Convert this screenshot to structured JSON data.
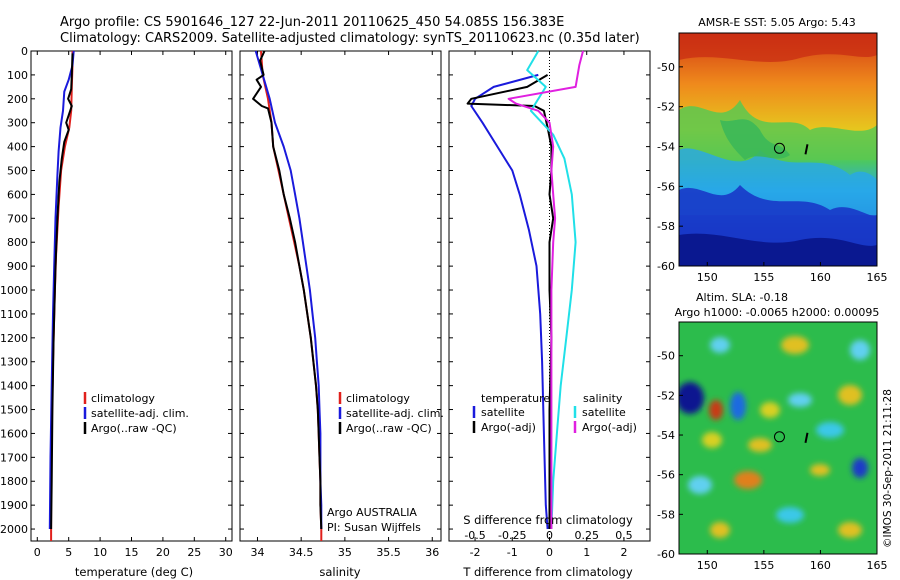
{
  "header": {
    "title_line1": "Argo profile: CS 5901646_127 22-Jun-2011 20110625_450 54.085S 156.383E",
    "title_line2": "Climatology: CARS2009. Satellite-adjusted climatology: synTS_20110623.nc (0.35d later)"
  },
  "colors": {
    "climatology": "#e0201c",
    "satellite": "#1a1adc",
    "argo": "#000000",
    "satellite_salinity": "#20e0e8",
    "argo_salinity_adj": "#e020e0"
  },
  "chart_data": [
    {
      "id": "temperature",
      "type": "line",
      "xlabel": "temperature (deg C)",
      "xlim": [
        -1,
        31
      ],
      "xticks": [
        0,
        5,
        10,
        15,
        20,
        25,
        30
      ],
      "ylim": [
        2050,
        0
      ],
      "yticks": [
        0,
        100,
        200,
        300,
        400,
        500,
        600,
        700,
        800,
        900,
        1000,
        1100,
        1200,
        1300,
        1400,
        1500,
        1600,
        1700,
        1800,
        1900,
        2000
      ],
      "legend": [
        "climatology",
        "satellite-adj. clim.",
        "Argo(..raw -QC)"
      ],
      "series": [
        {
          "name": "climatology",
          "color": "#e0201c",
          "points": [
            [
              5.6,
              0
            ],
            [
              5.6,
              60
            ],
            [
              5.5,
              150
            ],
            [
              5.4,
              250
            ],
            [
              5.1,
              320
            ],
            [
              4.4,
              400
            ],
            [
              3.8,
              500
            ],
            [
              3.4,
              650
            ],
            [
              3.0,
              850
            ],
            [
              2.8,
              1000
            ],
            [
              2.5,
              1300
            ],
            [
              2.3,
              1600
            ],
            [
              2.2,
              1800
            ],
            [
              2.2,
              2000
            ],
            [
              2.2,
              2050
            ]
          ]
        },
        {
          "name": "satellite-adj. clim.",
          "color": "#1a1adc",
          "points": [
            [
              5.8,
              0
            ],
            [
              5.6,
              60
            ],
            [
              5.0,
              120
            ],
            [
              4.3,
              170
            ],
            [
              4.1,
              250
            ],
            [
              3.7,
              320
            ],
            [
              3.4,
              420
            ],
            [
              3.2,
              520
            ],
            [
              2.9,
              700
            ],
            [
              2.7,
              900
            ],
            [
              2.5,
              1100
            ],
            [
              2.3,
              1400
            ],
            [
              2.1,
              1700
            ],
            [
              2.0,
              2000
            ]
          ]
        },
        {
          "name": "Argo(..raw -QC)",
          "color": "#000000",
          "points": [
            [
              5.6,
              10
            ],
            [
              5.5,
              100
            ],
            [
              5.4,
              160
            ],
            [
              4.9,
              200
            ],
            [
              5.5,
              230
            ],
            [
              4.6,
              300
            ],
            [
              5.0,
              330
            ],
            [
              4.3,
              380
            ],
            [
              3.9,
              450
            ],
            [
              3.5,
              550
            ],
            [
              3.2,
              700
            ],
            [
              2.9,
              900
            ],
            [
              2.6,
              1200
            ],
            [
              2.4,
              1500
            ],
            [
              2.3,
              1800
            ],
            [
              2.2,
              2000
            ]
          ]
        }
      ]
    },
    {
      "id": "salinity",
      "type": "line",
      "xlabel": "salinity",
      "xlim": [
        33.8,
        36.1
      ],
      "xticks": [
        34,
        34.5,
        35,
        35.5,
        36
      ],
      "ylim": [
        2050,
        0
      ],
      "legend": [
        "climatology",
        "satellite-adj. clim.",
        "Argo(..raw -QC)"
      ],
      "annotation": [
        "Argo AUSTRALIA",
        "PI: Susan Wijffels"
      ],
      "series": [
        {
          "name": "climatology",
          "color": "#e0201c",
          "points": [
            [
              34.04,
              0
            ],
            [
              34.06,
              100
            ],
            [
              34.12,
              200
            ],
            [
              34.16,
              300
            ],
            [
              34.18,
              400
            ],
            [
              34.24,
              500
            ],
            [
              34.3,
              600
            ],
            [
              34.36,
              700
            ],
            [
              34.42,
              800
            ],
            [
              34.48,
              900
            ],
            [
              34.53,
              1000
            ],
            [
              34.57,
              1100
            ],
            [
              34.61,
              1200
            ],
            [
              34.64,
              1300
            ],
            [
              34.67,
              1400
            ],
            [
              34.69,
              1500
            ],
            [
              34.7,
              1600
            ],
            [
              34.71,
              1700
            ],
            [
              34.72,
              1800
            ],
            [
              34.72,
              1900
            ],
            [
              34.73,
              2000
            ],
            [
              34.73,
              2050
            ]
          ]
        },
        {
          "name": "satellite-adj. clim.",
          "color": "#1a1adc",
          "points": [
            [
              33.98,
              0
            ],
            [
              34.06,
              100
            ],
            [
              34.14,
              200
            ],
            [
              34.2,
              300
            ],
            [
              34.3,
              400
            ],
            [
              34.38,
              500
            ],
            [
              34.43,
              600
            ],
            [
              34.48,
              700
            ],
            [
              34.52,
              800
            ],
            [
              34.56,
              900
            ],
            [
              34.6,
              1000
            ],
            [
              34.63,
              1100
            ],
            [
              34.66,
              1200
            ],
            [
              34.68,
              1300
            ],
            [
              34.7,
              1400
            ],
            [
              34.71,
              1500
            ],
            [
              34.72,
              1600
            ],
            [
              34.72,
              1700
            ],
            [
              34.72,
              1800
            ],
            [
              34.73,
              1900
            ],
            [
              34.73,
              2000
            ]
          ]
        },
        {
          "name": "Argo(..raw -QC)",
          "color": "#000000",
          "points": [
            [
              34.08,
              0
            ],
            [
              34.03,
              40
            ],
            [
              34.07,
              100
            ],
            [
              33.99,
              120
            ],
            [
              34.04,
              150
            ],
            [
              33.95,
              200
            ],
            [
              34.05,
              230
            ],
            [
              34.12,
              240
            ],
            [
              34.16,
              300
            ],
            [
              34.18,
              400
            ],
            [
              34.25,
              500
            ],
            [
              34.3,
              600
            ],
            [
              34.37,
              700
            ],
            [
              34.43,
              800
            ],
            [
              34.48,
              900
            ],
            [
              34.53,
              1000
            ],
            [
              34.57,
              1100
            ],
            [
              34.61,
              1200
            ],
            [
              34.64,
              1300
            ],
            [
              34.67,
              1400
            ],
            [
              34.69,
              1500
            ],
            [
              34.7,
              1600
            ],
            [
              34.71,
              1700
            ],
            [
              34.72,
              1800
            ],
            [
              34.72,
              1900
            ],
            [
              34.73,
              2000
            ]
          ]
        }
      ]
    },
    {
      "id": "difference",
      "type": "line",
      "xlabel_top": "S difference from climatology",
      "xlabel": "T difference from climatology",
      "xlim": [
        -2.7,
        2.7
      ],
      "xticks": [
        -2,
        -1,
        0,
        1,
        2
      ],
      "xticklabels_top": [
        "-0.5",
        "-0.25",
        "0",
        "0.25",
        "0.5"
      ],
      "xticks_top": [
        -2,
        -1,
        0,
        1,
        2
      ],
      "ylim": [
        2050,
        0
      ],
      "zero_line": true,
      "legend_left_title": "temperature",
      "legend_right_title": "salinity",
      "legend_left": [
        "satellite",
        "Argo(-adj)"
      ],
      "legend_right": [
        "satellite",
        "Argo(-adj)"
      ],
      "series": [
        {
          "name": "satellite (temperature)",
          "color": "#1a1adc",
          "points": [
            [
              -0.3,
              100
            ],
            [
              -1.5,
              150
            ],
            [
              -2.0,
              200
            ],
            [
              -2.1,
              230
            ],
            [
              -1.8,
              300
            ],
            [
              -1.4,
              400
            ],
            [
              -1.0,
              500
            ],
            [
              -0.8,
              600
            ],
            [
              -0.55,
              750
            ],
            [
              -0.35,
              900
            ],
            [
              -0.25,
              1100
            ],
            [
              -0.2,
              1300
            ],
            [
              -0.15,
              1600
            ],
            [
              -0.1,
              1900
            ],
            [
              -0.05,
              2000
            ]
          ]
        },
        {
          "name": "Argo(-adj) (temperature)",
          "color": "#000000",
          "points": [
            [
              -0.05,
              100
            ],
            [
              -0.6,
              150
            ],
            [
              -2.1,
              200
            ],
            [
              -2.2,
              220
            ],
            [
              -0.4,
              230
            ],
            [
              -0.15,
              250
            ],
            [
              -0.05,
              320
            ],
            [
              0.05,
              400
            ],
            [
              0.05,
              500
            ],
            [
              0.0,
              600
            ],
            [
              0.1,
              700
            ],
            [
              0.0,
              800
            ],
            [
              0.0,
              1000
            ],
            [
              0.05,
              1200
            ],
            [
              0.0,
              1500
            ],
            [
              0.0,
              1800
            ],
            [
              0.0,
              2000
            ]
          ]
        },
        {
          "name": "satellite (salinity)",
          "color": "#20e0e8",
          "points": [
            [
              -0.3,
              0
            ],
            [
              -0.6,
              80
            ],
            [
              -0.1,
              150
            ],
            [
              -0.5,
              250
            ],
            [
              0.1,
              350
            ],
            [
              0.4,
              450
            ],
            [
              0.6,
              600
            ],
            [
              0.7,
              800
            ],
            [
              0.6,
              1000
            ],
            [
              0.45,
              1200
            ],
            [
              0.3,
              1400
            ],
            [
              0.2,
              1600
            ],
            [
              0.1,
              1800
            ],
            [
              0.05,
              2000
            ]
          ]
        },
        {
          "name": "Argo(-adj) (salinity)",
          "color": "#e020e0",
          "points": [
            [
              0.9,
              0
            ],
            [
              0.8,
              60
            ],
            [
              0.7,
              150
            ],
            [
              -1.1,
              200
            ],
            [
              -0.9,
              220
            ],
            [
              -0.3,
              250
            ],
            [
              0.0,
              300
            ],
            [
              0.1,
              400
            ],
            [
              0.05,
              500
            ],
            [
              0.1,
              600
            ],
            [
              0.15,
              700
            ],
            [
              0.1,
              800
            ],
            [
              0.05,
              1000
            ],
            [
              0.05,
              1200
            ],
            [
              0.05,
              1400
            ],
            [
              0.05,
              1600
            ],
            [
              0.05,
              1800
            ],
            [
              0.05,
              2000
            ]
          ]
        }
      ]
    },
    {
      "id": "sst_map",
      "type": "heatmap",
      "title": "AMSR-E SST: 5.05 Argo: 5.43",
      "xlim": [
        147.5,
        165
      ],
      "ylim": [
        -60,
        -48.3
      ],
      "xticks": [
        150,
        155,
        160,
        165
      ],
      "yticks": [
        -50,
        -52,
        -54,
        -56,
        -58,
        -60
      ],
      "marker": {
        "lon": 156.38,
        "lat": -54.09
      }
    },
    {
      "id": "sla_map",
      "type": "heatmap",
      "title_line1": "Altim. SLA: -0.18",
      "title_line2": "Argo h1000: -0.0065 h2000: 0.00095",
      "xlim": [
        147.5,
        165
      ],
      "ylim": [
        -60,
        -48.3
      ],
      "xticks": [
        150,
        155,
        160,
        165
      ],
      "yticks": [
        -50,
        -52,
        -54,
        -56,
        -58,
        -60
      ],
      "marker": {
        "lon": 156.38,
        "lat": -54.09
      }
    }
  ],
  "stamp": "©IMOS 30-Sep-2011 21:11:28"
}
